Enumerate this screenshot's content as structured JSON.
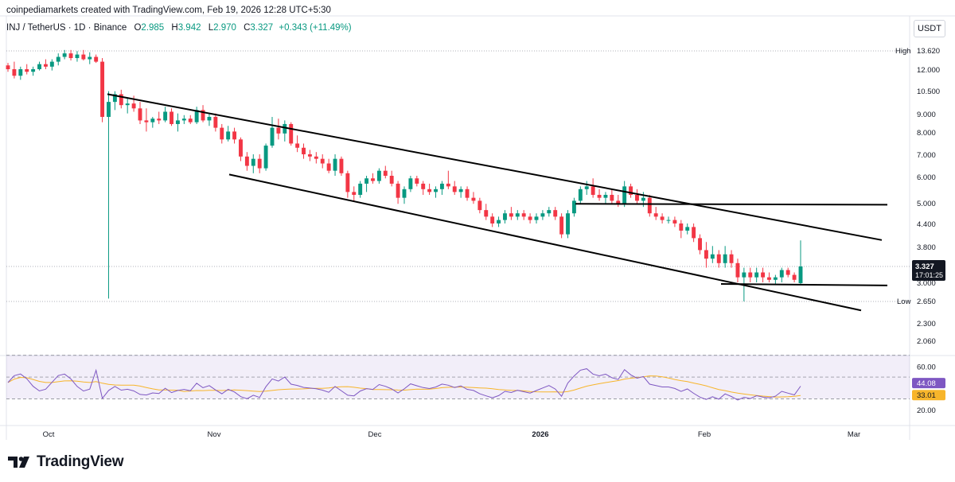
{
  "header": {
    "attribution": "coinpediamarkets created with TradingView.com, Feb 19, 2026 12:28 UTC+5:30"
  },
  "legend": {
    "symbol": "INJ / TetherUS · 1D · Binance",
    "o_label": "O",
    "o_value": "2.985",
    "h_label": "H",
    "h_value": "3.942",
    "l_label": "L",
    "l_value": "2.970",
    "c_label": "C",
    "c_value": "3.327",
    "change": "+0.343 (+11.49%)"
  },
  "currency_button": "USDT",
  "footer": {
    "brand": "TradingView"
  },
  "colors": {
    "up": "#089981",
    "down": "#f23645",
    "rsi": "#7e57c2",
    "rsi_ma": "#f7b52b",
    "grid": "#e0e3eb"
  },
  "chart_data": [
    {
      "type": "candlestick",
      "scale": "log",
      "y_ticks": [
        "13.620",
        "12.000",
        "10.500",
        "9.000",
        "8.000",
        "7.000",
        "6.000",
        "5.000",
        "4.400",
        "3.800",
        "3.327",
        "3.000",
        "2.650",
        "2.300",
        "2.060"
      ],
      "x_ticks": [
        "Oct",
        "Nov",
        "Dec",
        "2026",
        "Feb",
        "Mar"
      ],
      "high_label": "High",
      "high_value": 13.62,
      "low_label": "Low",
      "low_value": 2.65,
      "last_price": "3.327",
      "countdown": "17:01:25",
      "candles": [
        [
          12.3,
          12.5,
          11.8,
          12.0
        ],
        [
          12.0,
          12.6,
          11.3,
          11.5
        ],
        [
          11.5,
          12.2,
          11.2,
          12.0
        ],
        [
          12.0,
          12.4,
          11.6,
          11.8
        ],
        [
          11.8,
          12.2,
          11.5,
          12.0
        ],
        [
          12.0,
          12.6,
          11.9,
          12.4
        ],
        [
          12.4,
          12.8,
          12.0,
          12.2
        ],
        [
          12.2,
          12.8,
          11.9,
          12.6
        ],
        [
          12.6,
          13.3,
          12.3,
          13.0
        ],
        [
          13.0,
          13.6,
          12.8,
          13.3
        ],
        [
          13.3,
          13.6,
          12.7,
          12.9
        ],
        [
          12.9,
          13.5,
          12.6,
          13.2
        ],
        [
          13.2,
          13.6,
          12.7,
          12.8
        ],
        [
          12.8,
          13.4,
          12.4,
          13.0
        ],
        [
          13.0,
          13.2,
          12.5,
          12.6
        ],
        [
          12.6,
          12.9,
          8.5,
          8.8
        ],
        [
          8.8,
          10.4,
          2.7,
          9.7
        ],
        [
          9.7,
          10.4,
          9.2,
          10.2
        ],
        [
          10.2,
          10.5,
          9.3,
          9.5
        ],
        [
          9.5,
          10.0,
          9.0,
          9.6
        ],
        [
          9.6,
          10.1,
          9.1,
          9.3
        ],
        [
          9.3,
          9.7,
          8.4,
          8.6
        ],
        [
          8.6,
          9.3,
          8.0,
          8.5
        ],
        [
          8.5,
          8.8,
          8.2,
          8.7
        ],
        [
          8.7,
          9.1,
          8.4,
          8.6
        ],
        [
          8.6,
          9.4,
          8.5,
          9.1
        ],
        [
          9.1,
          9.3,
          8.3,
          8.4
        ],
        [
          8.4,
          9.0,
          8.0,
          8.6
        ],
        [
          8.6,
          8.9,
          8.4,
          8.7
        ],
        [
          8.7,
          8.9,
          8.4,
          8.5
        ],
        [
          8.5,
          9.4,
          8.4,
          9.2
        ],
        [
          9.2,
          9.5,
          8.5,
          8.6
        ],
        [
          8.6,
          9.0,
          8.3,
          8.8
        ],
        [
          8.8,
          9.0,
          8.0,
          8.2
        ],
        [
          8.2,
          8.4,
          7.4,
          7.6
        ],
        [
          7.6,
          8.3,
          7.5,
          8.0
        ],
        [
          8.0,
          8.2,
          7.4,
          7.6
        ],
        [
          7.6,
          7.7,
          6.6,
          6.8
        ],
        [
          6.8,
          7.0,
          6.2,
          6.4
        ],
        [
          6.4,
          6.9,
          6.1,
          6.7
        ],
        [
          6.7,
          6.9,
          6.1,
          6.3
        ],
        [
          6.3,
          7.4,
          6.2,
          7.3
        ],
        [
          7.3,
          8.8,
          7.2,
          8.2
        ],
        [
          8.2,
          8.7,
          7.6,
          7.9
        ],
        [
          7.9,
          8.6,
          7.5,
          8.4
        ],
        [
          8.4,
          8.5,
          7.3,
          7.4
        ],
        [
          7.4,
          7.8,
          7.0,
          7.2
        ],
        [
          7.2,
          7.4,
          6.7,
          6.9
        ],
        [
          6.9,
          7.1,
          6.6,
          6.8
        ],
        [
          6.8,
          7.0,
          6.5,
          6.7
        ],
        [
          6.7,
          6.9,
          6.3,
          6.5
        ],
        [
          6.5,
          6.7,
          6.1,
          6.2
        ],
        [
          6.2,
          6.9,
          6.0,
          6.7
        ],
        [
          6.7,
          6.8,
          6.0,
          6.1
        ],
        [
          6.1,
          6.2,
          5.2,
          5.4
        ],
        [
          5.4,
          5.6,
          5.1,
          5.3
        ],
        [
          5.3,
          5.8,
          5.2,
          5.7
        ],
        [
          5.7,
          6.0,
          5.4,
          5.9
        ],
        [
          5.9,
          6.1,
          5.7,
          5.8
        ],
        [
          5.8,
          6.3,
          5.7,
          6.2
        ],
        [
          6.2,
          6.4,
          5.9,
          6.0
        ],
        [
          6.0,
          6.2,
          5.6,
          5.7
        ],
        [
          5.7,
          5.8,
          5.0,
          5.2
        ],
        [
          5.2,
          5.6,
          5.0,
          5.5
        ],
        [
          5.5,
          6.0,
          5.4,
          5.9
        ],
        [
          5.9,
          6.0,
          5.6,
          5.7
        ],
        [
          5.7,
          5.8,
          5.3,
          5.5
        ],
        [
          5.5,
          5.7,
          5.3,
          5.4
        ],
        [
          5.4,
          5.6,
          5.2,
          5.5
        ],
        [
          5.5,
          5.8,
          5.3,
          5.7
        ],
        [
          5.7,
          6.2,
          5.5,
          5.6
        ],
        [
          5.6,
          5.8,
          5.3,
          5.4
        ],
        [
          5.4,
          5.6,
          5.2,
          5.5
        ],
        [
          5.5,
          5.6,
          5.1,
          5.2
        ],
        [
          5.2,
          5.4,
          5.0,
          5.1
        ],
        [
          5.1,
          5.2,
          4.7,
          4.8
        ],
        [
          4.8,
          5.0,
          4.5,
          4.6
        ],
        [
          4.6,
          4.7,
          4.3,
          4.4
        ],
        [
          4.4,
          4.6,
          4.3,
          4.5
        ],
        [
          4.5,
          4.8,
          4.4,
          4.7
        ],
        [
          4.7,
          4.9,
          4.5,
          4.6
        ],
        [
          4.6,
          4.8,
          4.5,
          4.7
        ],
        [
          4.7,
          4.8,
          4.5,
          4.6
        ],
        [
          4.6,
          4.7,
          4.4,
          4.5
        ],
        [
          4.5,
          4.7,
          4.4,
          4.6
        ],
        [
          4.6,
          4.8,
          4.5,
          4.7
        ],
        [
          4.7,
          4.9,
          4.6,
          4.8
        ],
        [
          4.8,
          4.9,
          4.5,
          4.6
        ],
        [
          4.6,
          4.7,
          4.0,
          4.1
        ],
        [
          4.1,
          4.8,
          4.0,
          4.7
        ],
        [
          4.7,
          5.2,
          4.6,
          5.1
        ],
        [
          5.1,
          5.6,
          5.0,
          5.5
        ],
        [
          5.5,
          5.8,
          5.3,
          5.6
        ],
        [
          5.6,
          5.9,
          5.2,
          5.3
        ],
        [
          5.3,
          5.5,
          5.1,
          5.2
        ],
        [
          5.2,
          5.4,
          5.0,
          5.3
        ],
        [
          5.3,
          5.5,
          5.0,
          5.1
        ],
        [
          5.1,
          5.3,
          4.9,
          5.0
        ],
        [
          5.0,
          5.8,
          4.9,
          5.6
        ],
        [
          5.6,
          5.7,
          5.2,
          5.3
        ],
        [
          5.3,
          5.5,
          5.0,
          5.1
        ],
        [
          5.1,
          5.4,
          4.9,
          5.2
        ],
        [
          5.2,
          5.3,
          4.6,
          4.7
        ],
        [
          4.7,
          4.9,
          4.5,
          4.6
        ],
        [
          4.6,
          4.7,
          4.4,
          4.5
        ],
        [
          4.5,
          4.6,
          4.4,
          4.5
        ],
        [
          4.5,
          4.6,
          4.3,
          4.4
        ],
        [
          4.4,
          4.5,
          4.0,
          4.2
        ],
        [
          4.2,
          4.4,
          4.1,
          4.3
        ],
        [
          4.3,
          4.4,
          3.9,
          4.0
        ],
        [
          4.0,
          4.1,
          3.6,
          3.7
        ],
        [
          3.7,
          3.9,
          3.3,
          3.5
        ],
        [
          3.5,
          3.8,
          3.4,
          3.6
        ],
        [
          3.6,
          3.7,
          3.3,
          3.4
        ],
        [
          3.4,
          3.8,
          3.3,
          3.6
        ],
        [
          3.6,
          3.7,
          3.3,
          3.4
        ],
        [
          3.4,
          3.5,
          3.0,
          3.1
        ],
        [
          3.1,
          3.3,
          2.65,
          3.2
        ],
        [
          3.2,
          3.3,
          3.0,
          3.1
        ],
        [
          3.1,
          3.3,
          3.0,
          3.2
        ],
        [
          3.2,
          3.3,
          3.0,
          3.1
        ],
        [
          3.1,
          3.2,
          3.0,
          3.05
        ],
        [
          3.05,
          3.15,
          2.95,
          3.1
        ],
        [
          3.1,
          3.3,
          3.0,
          3.25
        ],
        [
          3.25,
          3.3,
          3.1,
          3.15
        ],
        [
          3.15,
          3.2,
          3.0,
          3.05
        ],
        [
          2.985,
          3.942,
          2.97,
          3.327
        ]
      ],
      "rsi": {
        "ticks": [
          "60.00",
          "20.00"
        ],
        "rsi_value": "44.08",
        "ma_value": "33.01",
        "upper": 70,
        "lower": 30,
        "mid": 50
      }
    }
  ]
}
